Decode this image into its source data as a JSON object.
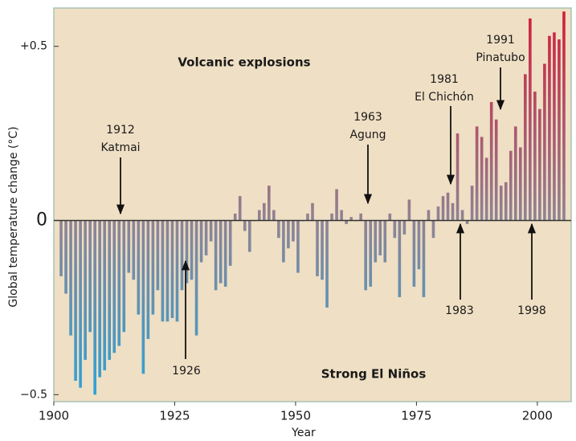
{
  "chart_data": {
    "type": "bar",
    "y_label": "Global temperature change (°C)",
    "x_label": "Year",
    "x": [
      1901,
      1902,
      1903,
      1904,
      1905,
      1906,
      1907,
      1908,
      1909,
      1910,
      1911,
      1912,
      1913,
      1914,
      1915,
      1916,
      1917,
      1918,
      1919,
      1920,
      1921,
      1922,
      1923,
      1924,
      1925,
      1926,
      1927,
      1928,
      1929,
      1930,
      1931,
      1932,
      1933,
      1934,
      1935,
      1936,
      1937,
      1938,
      1939,
      1940,
      1941,
      1942,
      1943,
      1944,
      1945,
      1946,
      1947,
      1948,
      1949,
      1950,
      1951,
      1952,
      1953,
      1954,
      1955,
      1956,
      1957,
      1958,
      1959,
      1960,
      1961,
      1962,
      1963,
      1964,
      1965,
      1966,
      1967,
      1968,
      1969,
      1970,
      1971,
      1972,
      1973,
      1974,
      1975,
      1976,
      1977,
      1978,
      1979,
      1980,
      1981,
      1982,
      1983,
      1984,
      1985,
      1986,
      1987,
      1988,
      1989,
      1990,
      1991,
      1992,
      1993,
      1994,
      1995,
      1996,
      1997,
      1998,
      1999,
      2000,
      2001,
      2002,
      2003,
      2004,
      2005
    ],
    "values": [
      -0.16,
      -0.21,
      -0.33,
      -0.46,
      -0.48,
      -0.4,
      -0.32,
      -0.5,
      -0.45,
      -0.43,
      -0.4,
      -0.38,
      -0.36,
      -0.32,
      -0.15,
      -0.17,
      -0.27,
      -0.44,
      -0.34,
      -0.27,
      -0.2,
      -0.29,
      -0.29,
      -0.28,
      -0.29,
      -0.2,
      -0.18,
      -0.17,
      -0.33,
      -0.12,
      -0.1,
      -0.06,
      -0.2,
      -0.18,
      -0.19,
      -0.13,
      0.02,
      0.07,
      -0.03,
      -0.09,
      0.0,
      0.03,
      0.05,
      0.1,
      0.03,
      -0.05,
      -0.12,
      -0.08,
      -0.06,
      -0.15,
      0.0,
      0.02,
      0.05,
      -0.16,
      -0.17,
      -0.25,
      0.02,
      0.09,
      0.03,
      -0.01,
      0.01,
      0.0,
      0.02,
      -0.2,
      -0.19,
      -0.12,
      -0.1,
      -0.12,
      0.02,
      -0.05,
      -0.22,
      -0.04,
      0.06,
      -0.19,
      -0.14,
      -0.22,
      0.03,
      -0.05,
      0.04,
      0.07,
      0.08,
      0.05,
      0.25,
      0.03,
      -0.01,
      0.1,
      0.27,
      0.24,
      0.18,
      0.34,
      0.29,
      0.1,
      0.11,
      0.2,
      0.27,
      0.21,
      0.42,
      0.58,
      0.37,
      0.32,
      0.45,
      0.53,
      0.54,
      0.52,
      0.6
    ],
    "colors": {
      "top": "#d31b3a",
      "zero": "#8f8494",
      "bottom": "#29a3da"
    },
    "xlim": [
      1900,
      2007
    ],
    "xticks": [
      1900,
      1925,
      1950,
      1975,
      2000
    ],
    "ylim": [
      -0.52,
      0.61
    ],
    "yticks": [
      {
        "value": 0.5,
        "label": "+0.5"
      },
      0,
      {
        "value": -0.5,
        "label": "−0.5"
      }
    ],
    "annotations": [
      {
        "text": [
          "Volcanic explosions"
        ]
      },
      {
        "text": [
          "Strong El Niños"
        ]
      },
      {
        "text": [
          "1912",
          "Katmai"
        ]
      },
      {
        "text": [
          "1926"
        ]
      },
      {
        "text": [
          "1963",
          "Agung"
        ]
      },
      {
        "text": [
          "1981",
          "El Chichón"
        ]
      },
      {
        "text": [
          "1991",
          "Pinatubo"
        ]
      },
      {
        "text": [
          "1983"
        ]
      },
      {
        "text": [
          "1998"
        ]
      }
    ]
  }
}
